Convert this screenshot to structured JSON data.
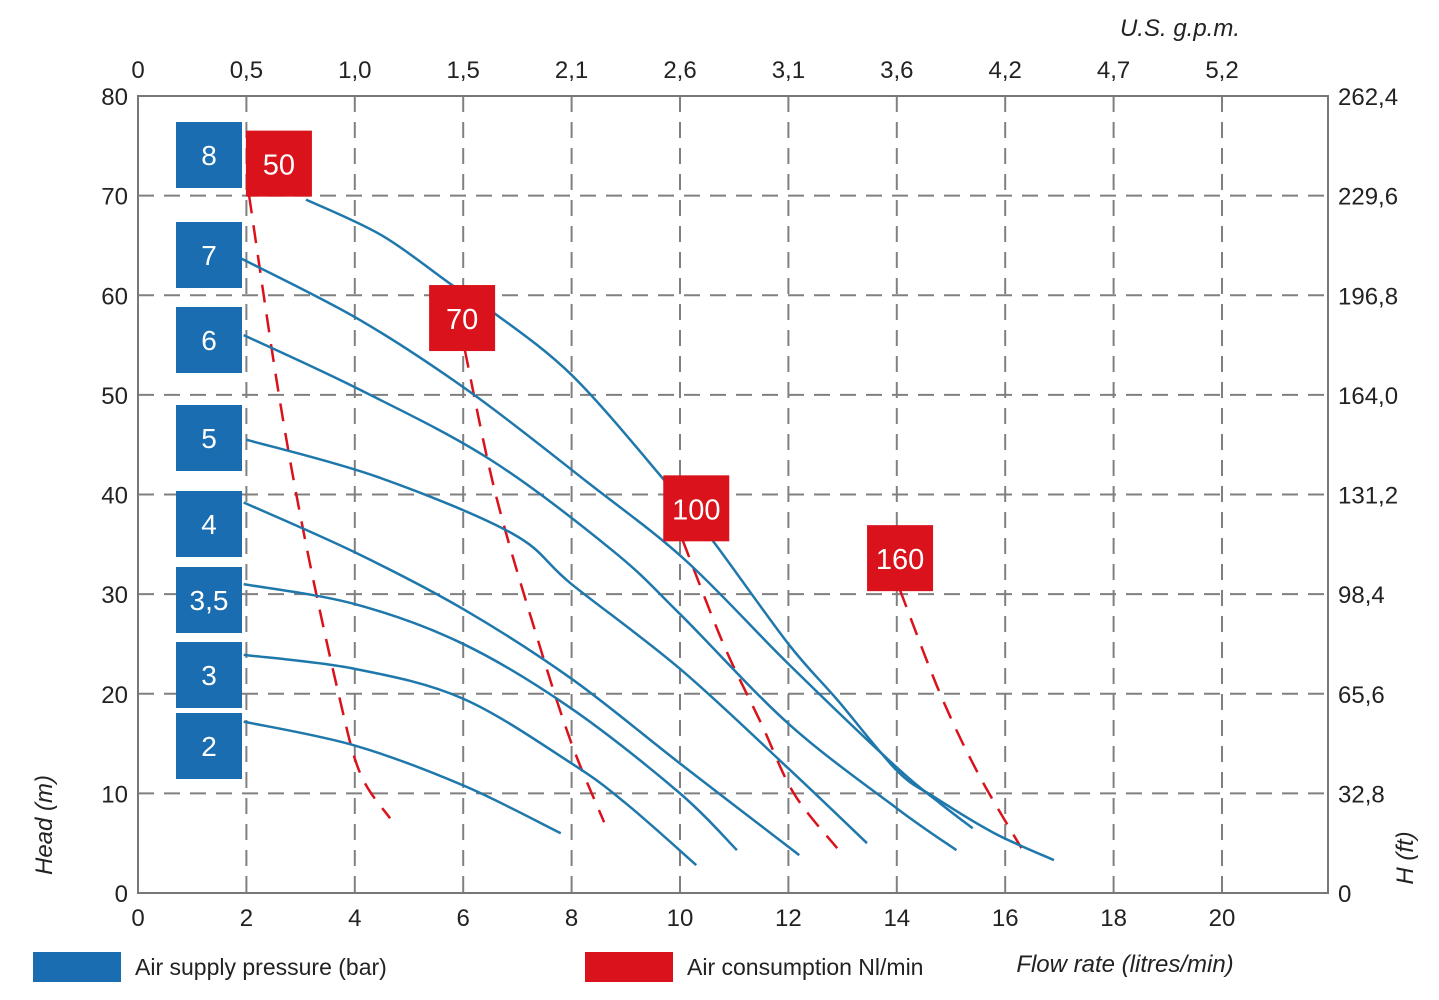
{
  "chart_data": {
    "type": "line",
    "xlabel": "Flow rate (litres/min)",
    "ylabel": "Head  (m)",
    "x2label": "U.S. g.p.m.",
    "y2label": "H (ft)",
    "xlim": [
      0,
      22
    ],
    "ylim": [
      0,
      80
    ],
    "grid": true,
    "x_ticks": [
      "0",
      "2",
      "4",
      "6",
      "8",
      "10",
      "12",
      "14",
      "16",
      "18",
      "20"
    ],
    "y_ticks": [
      "0",
      "10",
      "20",
      "30",
      "40",
      "50",
      "60",
      "70",
      "80"
    ],
    "x2_ticks": [
      "0",
      "0,5",
      "1,0",
      "1,5",
      "2,1",
      "2,6",
      "3,1",
      "3,6",
      "4,2",
      "4,7",
      "5,2"
    ],
    "y2_ticks": [
      "0",
      "32,8",
      "65,6",
      "98,4",
      "131,2",
      "164,0",
      "196,8",
      "229,6",
      "262,4"
    ],
    "colors": {
      "pressure": "#1a6db0",
      "pressure_line": "#1f78ab",
      "consumption": "#d9121b",
      "grid": "#808080"
    },
    "legend": [
      {
        "label": "Air supply pressure (bar)",
        "color": "#1a6db0"
      },
      {
        "label": "Air consumption Nl/min",
        "color": "#d9121b"
      }
    ],
    "pressure_series": [
      {
        "name": "8",
        "points": [
          [
            3.1,
            69.6
          ],
          [
            4.5,
            66
          ],
          [
            5.8,
            61
          ],
          [
            6.5,
            58.5
          ],
          [
            8,
            52
          ],
          [
            9.7,
            41.5
          ],
          [
            10.6,
            35.4
          ],
          [
            12,
            25
          ],
          [
            12.9,
            19.4
          ],
          [
            14,
            12.3
          ],
          [
            14.7,
            9.6
          ],
          [
            15.8,
            6
          ],
          [
            16.9,
            3.3
          ]
        ]
      },
      {
        "name": "7",
        "points": [
          [
            1.9,
            63.7
          ],
          [
            4.1,
            57.5
          ],
          [
            6.15,
            50.2
          ],
          [
            8.3,
            41.2
          ],
          [
            10.1,
            33.4
          ],
          [
            12,
            23
          ],
          [
            14,
            12.6
          ],
          [
            14.8,
            9
          ],
          [
            15.4,
            6.5
          ]
        ]
      },
      {
        "name": "6",
        "points": [
          [
            1.95,
            56
          ],
          [
            4.1,
            50.5
          ],
          [
            6.5,
            43.5
          ],
          [
            8.75,
            34.4
          ],
          [
            10,
            28
          ],
          [
            12,
            17
          ],
          [
            14,
            8.5
          ],
          [
            15.1,
            4.3
          ]
        ]
      },
      {
        "name": "5",
        "points": [
          [
            2,
            45.5
          ],
          [
            4.4,
            41.8
          ],
          [
            6.9,
            36.1
          ],
          [
            8,
            31
          ],
          [
            10,
            22.5
          ],
          [
            12,
            12.5
          ],
          [
            13.45,
            5
          ]
        ]
      },
      {
        "name": "4",
        "points": [
          [
            1.95,
            39.2
          ],
          [
            4,
            34.2
          ],
          [
            6,
            28.5
          ],
          [
            8,
            21.5
          ],
          [
            10,
            13
          ],
          [
            12.2,
            3.8
          ]
        ]
      },
      {
        "name": "3,5",
        "points": [
          [
            1.95,
            31
          ],
          [
            4,
            29
          ],
          [
            6,
            25
          ],
          [
            8,
            18.5
          ],
          [
            10,
            10
          ],
          [
            11.05,
            4.3
          ]
        ]
      },
      {
        "name": "3",
        "points": [
          [
            1.95,
            23.9
          ],
          [
            4,
            22.5
          ],
          [
            6,
            19.5
          ],
          [
            8,
            13
          ],
          [
            9,
            9
          ],
          [
            10.3,
            2.8
          ]
        ]
      },
      {
        "name": "2",
        "points": [
          [
            1.95,
            17.2
          ],
          [
            4,
            14.8
          ],
          [
            6,
            10.8
          ],
          [
            7.8,
            6
          ]
        ]
      }
    ],
    "consumption_series": [
      {
        "name": "50",
        "points": [
          [
            2.05,
            70
          ],
          [
            2.6,
            50
          ],
          [
            3.1,
            35
          ],
          [
            3.7,
            20
          ],
          [
            4.1,
            12
          ],
          [
            4.65,
            7.5
          ]
        ]
      },
      {
        "name": "70",
        "points": [
          [
            6.03,
            54.5
          ],
          [
            6.6,
            40
          ],
          [
            7.4,
            25
          ],
          [
            8.0,
            15
          ],
          [
            8.6,
            7.1
          ]
        ]
      },
      {
        "name": "100",
        "points": [
          [
            10.05,
            35.4
          ],
          [
            10.8,
            25
          ],
          [
            11.5,
            17
          ],
          [
            12.1,
            10
          ],
          [
            12.9,
            4.5
          ]
        ]
      },
      {
        "name": "160",
        "points": [
          [
            14.06,
            30.4
          ],
          [
            14.8,
            20
          ],
          [
            15.5,
            12
          ],
          [
            16.3,
            4.5
          ]
        ]
      }
    ]
  }
}
